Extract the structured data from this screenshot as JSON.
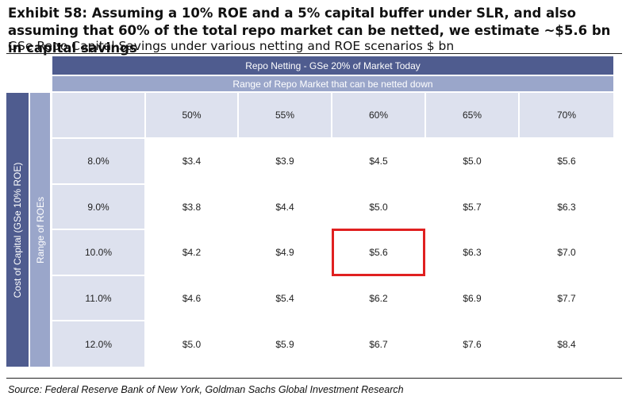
{
  "title": "Exhibit 58: Assuming a 10% ROE and a 5% capital buffer under SLR, and also assuming that 60% of the total repo market can be netted, we estimate ~$5.6 bn in capital savings",
  "subtitle": "GSe Repo Capital Savings under various netting and ROE scenarios $ bn",
  "header_top": "Repo Netting - GSe 20% of Market Today",
  "header_second": "Range of Repo Market that can be netted down",
  "row_group_outer": "Cost of Capital (GSe 10% ROE)",
  "row_group_inner": "Range of ROEs",
  "source": "Source: Federal Reserve Bank of New York, Goldman Sachs Global Investment Research",
  "colors": {
    "dark_band": "#4f5c8f",
    "light_band": "#9aa6ca",
    "shaded_cell": "#dde1ee",
    "highlight": "#e02020"
  },
  "chart_data": {
    "type": "table",
    "columns": [
      "50%",
      "55%",
      "60%",
      "65%",
      "70%"
    ],
    "rows": [
      {
        "label": "8.0%",
        "values": [
          "$3.4",
          "$3.9",
          "$4.5",
          "$5.0",
          "$5.6"
        ]
      },
      {
        "label": "9.0%",
        "values": [
          "$3.8",
          "$4.4",
          "$5.0",
          "$5.7",
          "$6.3"
        ]
      },
      {
        "label": "10.0%",
        "values": [
          "$4.2",
          "$4.9",
          "$5.6",
          "$6.3",
          "$7.0"
        ]
      },
      {
        "label": "11.0%",
        "values": [
          "$4.6",
          "$5.4",
          "$6.2",
          "$6.9",
          "$7.7"
        ]
      },
      {
        "label": "12.0%",
        "values": [
          "$5.0",
          "$5.9",
          "$6.7",
          "$7.6",
          "$8.4"
        ]
      }
    ],
    "highlighted": {
      "row": 2,
      "column": 2
    }
  }
}
